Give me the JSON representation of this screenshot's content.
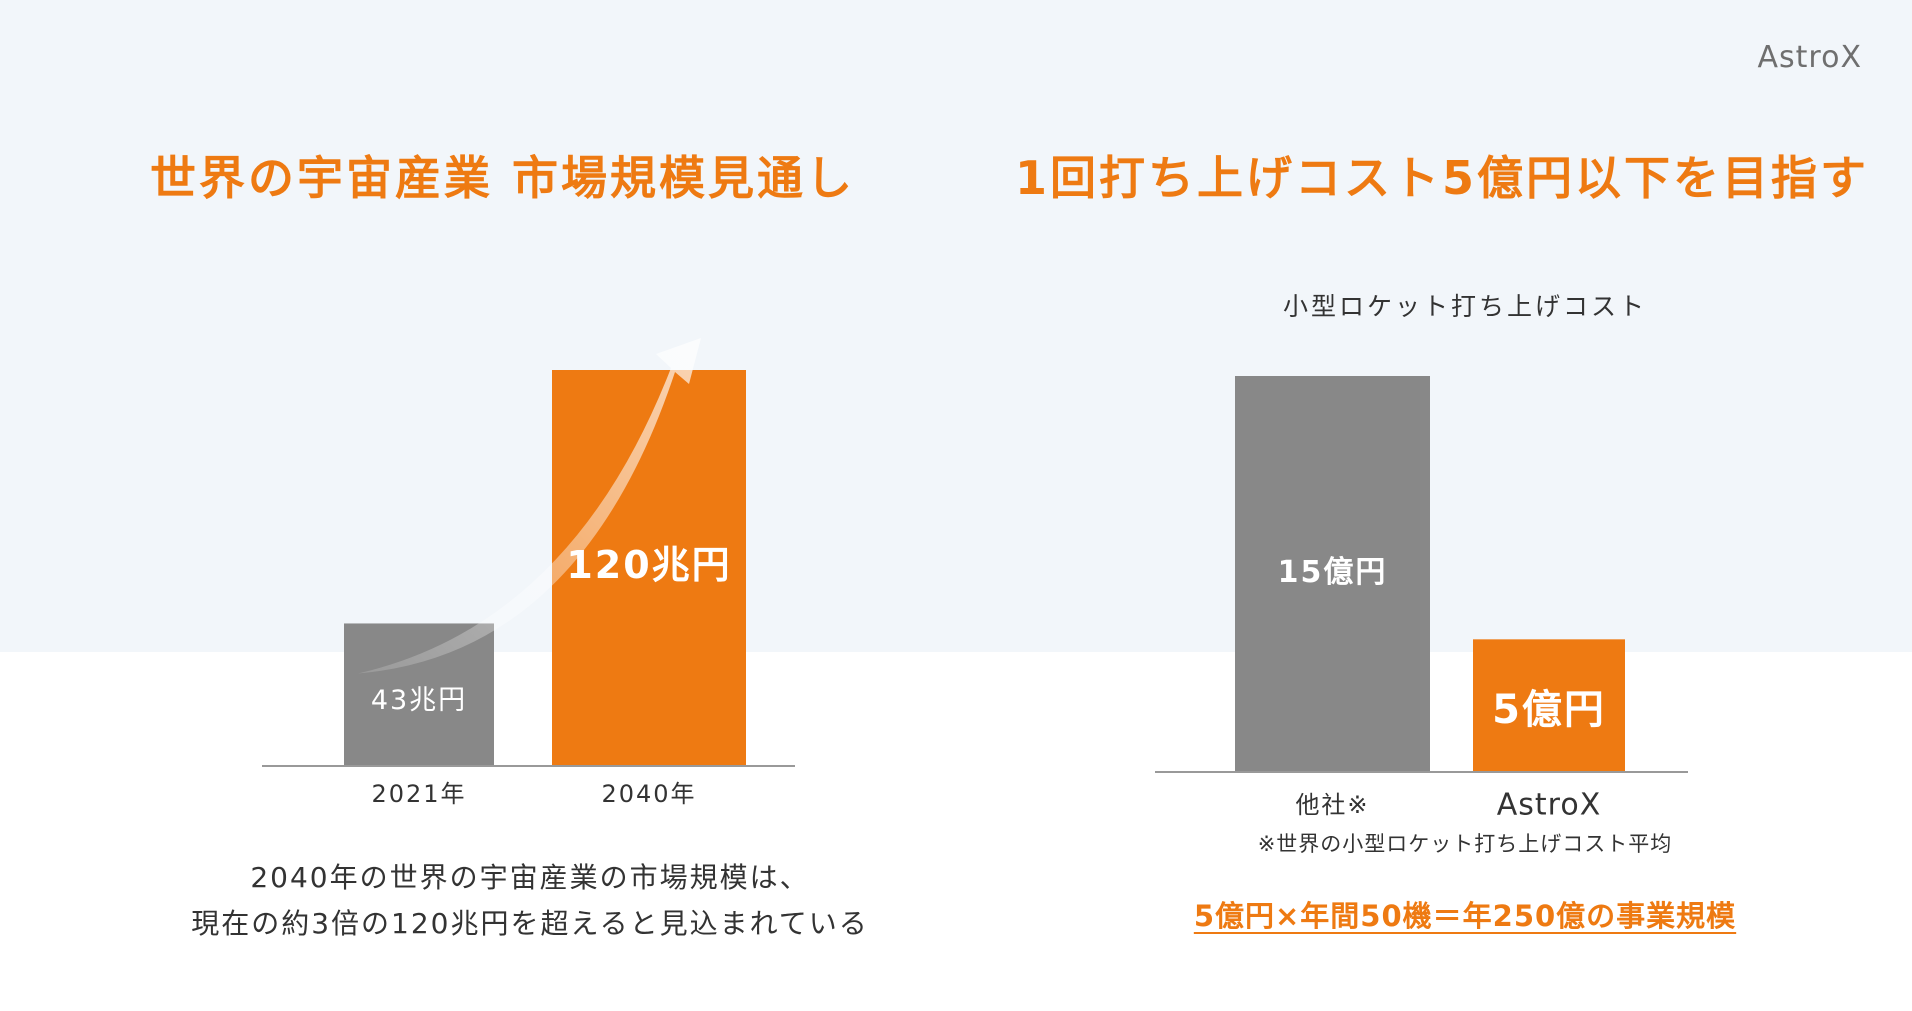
{
  "header": {
    "logo": "AstroX"
  },
  "left_panel": {
    "title": "世界の宇宙産業 市場規模見通し",
    "summary_line1": "2040年の世界の宇宙産業の市場規模は、",
    "summary_line2": "現在の約3倍の120兆円を超えると見込まれている"
  },
  "right_panel": {
    "title": "1回打ち上げコスト5億円以下を目指す",
    "chart_caption": "小型ロケット打ち上げコスト",
    "footnote": "※世界の小型ロケット打ち上げコスト平均",
    "business_scale": "5億円×年間50機＝年250億の事業規模"
  },
  "colors": {
    "accent": "#ee7a12",
    "gray_bar": "#888888",
    "axis": "#999999",
    "background_band": "#f2f6fa"
  },
  "chart_data": [
    {
      "type": "bar",
      "categories": [
        "2021年",
        "2040年"
      ],
      "values": [
        43,
        120
      ],
      "value_labels": [
        "43兆円",
        "120兆円"
      ],
      "unit": "兆円",
      "bar_colors": [
        "#888888",
        "#ee7a12"
      ],
      "ylim": [
        0,
        120
      ],
      "grid": false,
      "annotation": "growth-arrow"
    },
    {
      "type": "bar",
      "title": "小型ロケット打ち上げコスト",
      "categories": [
        "他社※",
        "AstroX"
      ],
      "values": [
        15,
        5
      ],
      "value_labels": [
        "15億円",
        "5億円"
      ],
      "unit": "億円",
      "bar_colors": [
        "#888888",
        "#ee7a12"
      ],
      "ylim": [
        0,
        15
      ],
      "grid": false
    }
  ]
}
